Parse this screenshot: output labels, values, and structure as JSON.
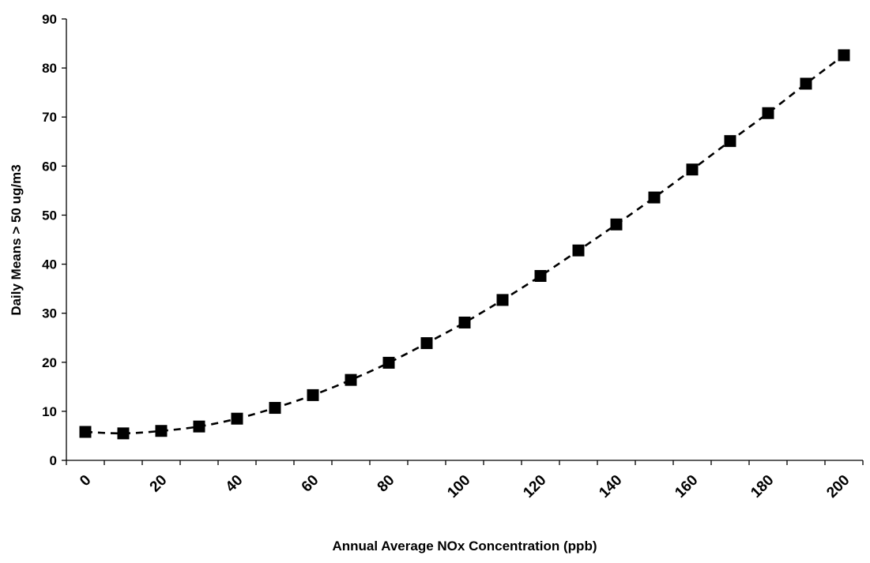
{
  "chart_data": {
    "type": "scatter",
    "title": "",
    "xlabel": "Annual Average NOx Concentration (ppb)",
    "ylabel": "Daily Means > 50 ug/m3",
    "xlim": [
      0,
      210
    ],
    "ylim": [
      0,
      90
    ],
    "x_ticks": [
      "0",
      "20",
      "40",
      "60",
      "80",
      "100",
      "120",
      "140",
      "160",
      "180",
      "200"
    ],
    "y_ticks": [
      "0",
      "10",
      "20",
      "30",
      "40",
      "50",
      "60",
      "70",
      "80",
      "90"
    ],
    "x_minor_tick_step": 10,
    "grid": false,
    "legend": "none",
    "series": [
      {
        "marker": "square",
        "color": "#000000",
        "trendline": "polynomial, dashed",
        "x": [
          5,
          15,
          25,
          35,
          45,
          55,
          65,
          75,
          85,
          95,
          105,
          115,
          125,
          135,
          145,
          155,
          165,
          175,
          185,
          195,
          205
        ],
        "y": [
          5.8,
          5.5,
          6.0,
          6.9,
          8.5,
          10.7,
          13.3,
          16.4,
          19.9,
          23.9,
          28.1,
          32.7,
          37.6,
          42.8,
          48.1,
          53.6,
          59.3,
          65.1,
          70.8,
          76.8,
          82.6
        ]
      }
    ]
  }
}
